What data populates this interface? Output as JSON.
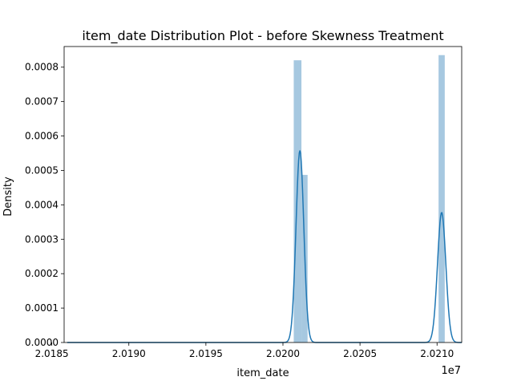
{
  "chart_data": {
    "type": "histogram",
    "title": "item_date Distribution Plot - before Skewness Treatment",
    "xlabel": "item_date",
    "ylabel": "Density",
    "x_offset_label": "1e7",
    "xlim": [
      2.01858,
      2.02116
    ],
    "ylim": [
      0,
      0.00086
    ],
    "x_ticks": [
      {
        "value": 2.0185,
        "label": "2.0185"
      },
      {
        "value": 2.019,
        "label": "2.0190"
      },
      {
        "value": 2.0195,
        "label": "2.0195"
      },
      {
        "value": 2.02,
        "label": "2.0200"
      },
      {
        "value": 2.0205,
        "label": "2.0205"
      },
      {
        "value": 2.021,
        "label": "2.0210"
      }
    ],
    "y_ticks": [
      {
        "value": 0.0,
        "label": "0.0000"
      },
      {
        "value": 0.0001,
        "label": "0.0001"
      },
      {
        "value": 0.0002,
        "label": "0.0002"
      },
      {
        "value": 0.0003,
        "label": "0.0003"
      },
      {
        "value": 0.0004,
        "label": "0.0004"
      },
      {
        "value": 0.0005,
        "label": "0.0005"
      },
      {
        "value": 0.0006,
        "label": "0.0006"
      },
      {
        "value": 0.0007,
        "label": "0.0007"
      },
      {
        "value": 0.0008,
        "label": "0.0008"
      }
    ],
    "bars": [
      {
        "x0": 2.02007,
        "x1": 2.02012,
        "height": 0.00082
      },
      {
        "x0": 2.02012,
        "x1": 2.02016,
        "height": 0.000487
      },
      {
        "x0": 2.02101,
        "x1": 2.02105,
        "height": 0.000835
      }
    ],
    "kde": {
      "x_start": 2.0186,
      "x_end": 2.02116,
      "peaks": [
        {
          "center": 2.02011,
          "height": 0.000558,
          "sigma": 2.53e-05
        },
        {
          "center": 2.02103,
          "height": 0.000378,
          "sigma": 2.7e-05
        }
      ]
    },
    "colors": {
      "bar": "#a6c8e0",
      "line": "#1f77b4",
      "axis": "#000000"
    },
    "grid": false,
    "legend": "none"
  }
}
